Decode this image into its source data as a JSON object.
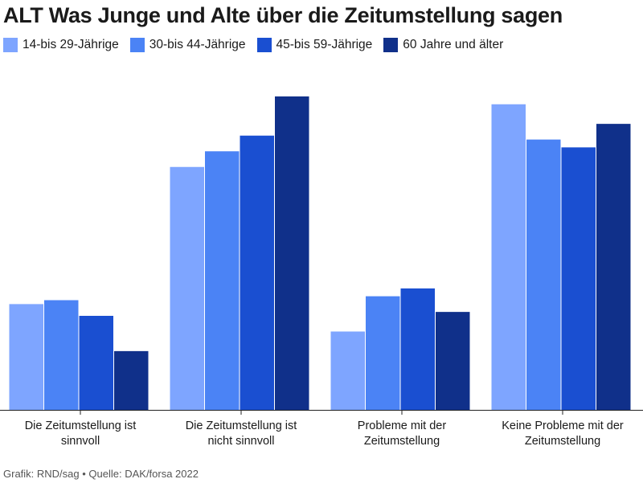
{
  "title": "ALT Was Junge und Alte über die Zeitumstellung sagen",
  "legend": [
    {
      "label": "14-bis 29-Jährige",
      "color": "#7ea5ff"
    },
    {
      "label": "30-bis 44-Jährige",
      "color": "#4b83f5"
    },
    {
      "label": "45-bis 59-Jährige",
      "color": "#1a4fd1"
    },
    {
      "label": "60 Jahre und älter",
      "color": "#10308a"
    }
  ],
  "chart_data": {
    "type": "bar",
    "categories": [
      [
        "Die Zeitumstellung ist",
        "sinnvoll"
      ],
      [
        "Die Zeitumstellung ist",
        "nicht sinnvoll"
      ],
      [
        "Probleme mit der",
        "Zeitumstellung"
      ],
      [
        "Keine Probleme mit der",
        "Zeitumstellung"
      ]
    ],
    "series": [
      {
        "name": "14-bis 29-Jährige",
        "values": [
          27,
          62,
          20,
          78
        ]
      },
      {
        "name": "30-bis 44-Jährige",
        "values": [
          28,
          66,
          29,
          69
        ]
      },
      {
        "name": "45-bis 59-Jährige",
        "values": [
          24,
          70,
          31,
          67
        ]
      },
      {
        "name": "60 Jahre und älter",
        "values": [
          15,
          80,
          25,
          73
        ]
      }
    ],
    "ylim": [
      0,
      80
    ],
    "grid": false,
    "legend_position": "top-left"
  },
  "footer": "Grafik: RND/sag • Quelle: DAK/forsa 2022"
}
